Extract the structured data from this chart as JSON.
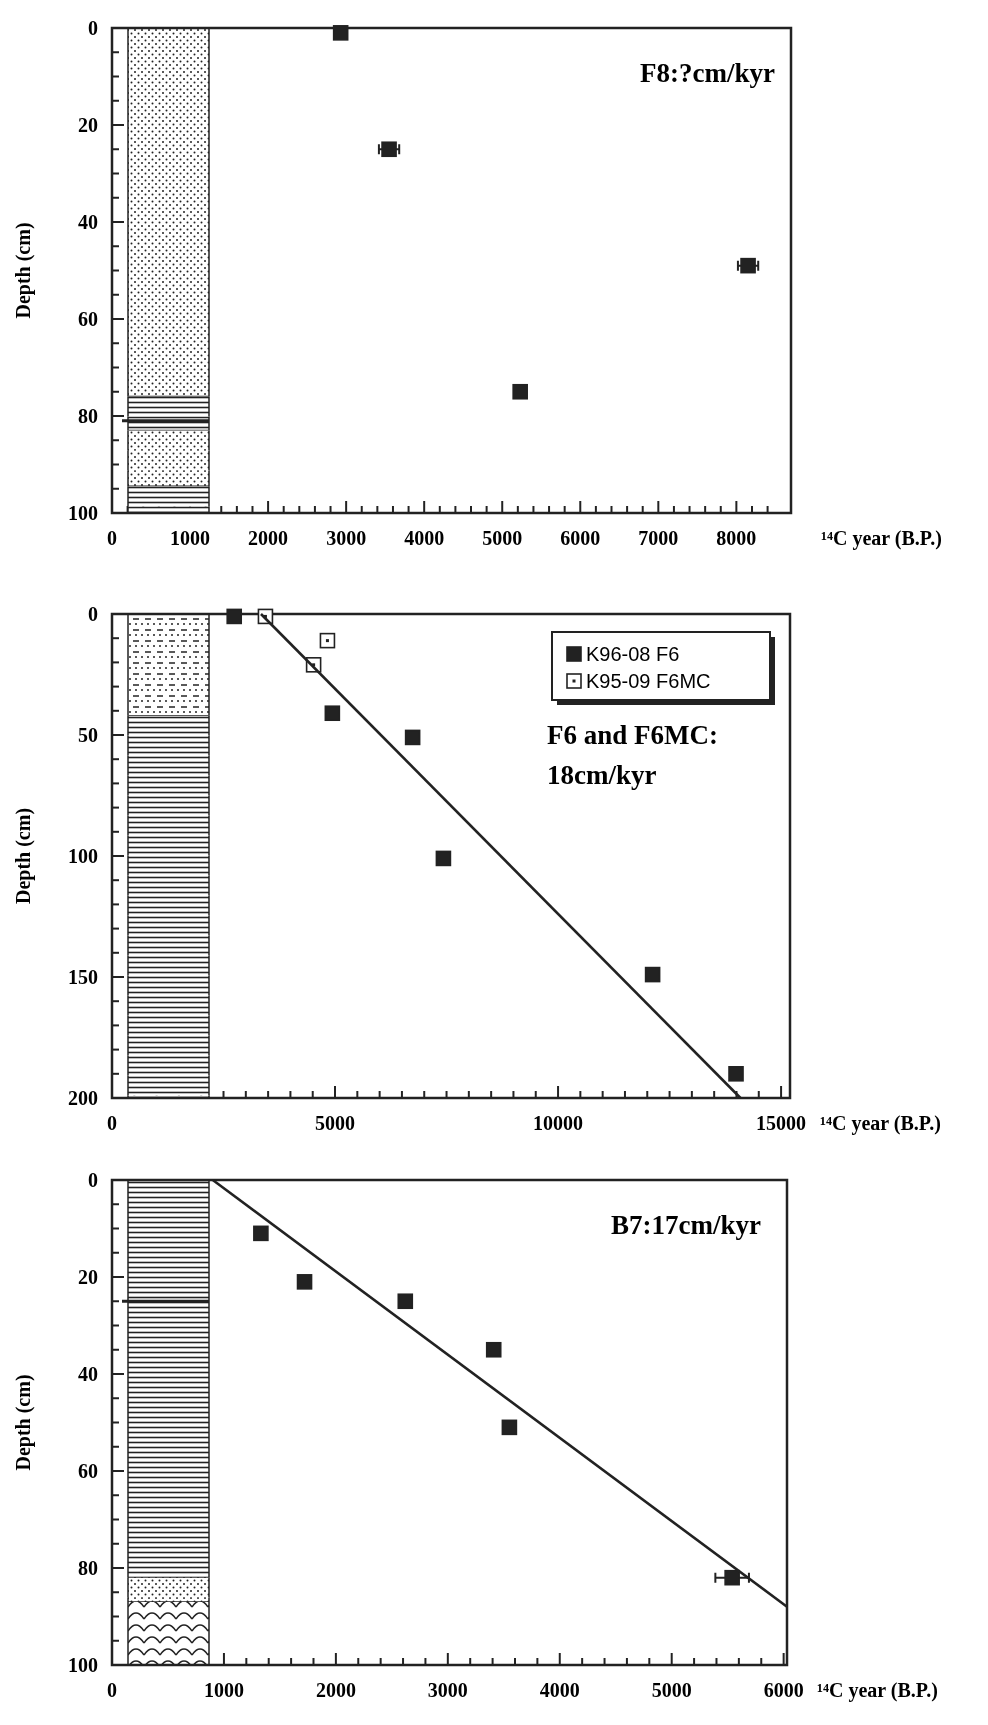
{
  "chart_data": [
    {
      "type": "scatter",
      "title": "F8:?cm/kyr",
      "xlabel": "¹⁴C year (B.P.)",
      "ylabel": "Depth (cm)",
      "marker": "square",
      "legend": false,
      "xlim": [
        0,
        8700
      ],
      "ylim": [
        100,
        0
      ],
      "xticks": [
        0,
        1000,
        2000,
        3000,
        4000,
        5000,
        6000,
        7000,
        8000,
        {
          "value": 200,
          "label": null
        },
        {
          "value": 400,
          "label": null
        },
        {
          "value": 600,
          "label": null
        },
        {
          "value": 800,
          "label": null
        },
        {
          "value": 1200,
          "label": null
        },
        {
          "value": 1400,
          "label": null
        },
        {
          "value": 1600,
          "label": null
        },
        {
          "value": 1800,
          "label": null
        },
        {
          "value": 2200,
          "label": null
        },
        {
          "value": 2400,
          "label": null
        },
        {
          "value": 2600,
          "label": null
        },
        {
          "value": 2800,
          "label": null
        },
        {
          "value": 3200,
          "label": null
        },
        {
          "value": 3400,
          "label": null
        },
        {
          "value": 3600,
          "label": null
        },
        {
          "value": 3800,
          "label": null
        },
        {
          "value": 4200,
          "label": null
        },
        {
          "value": 4400,
          "label": null
        },
        {
          "value": 4600,
          "label": null
        },
        {
          "value": 4800,
          "label": null
        },
        {
          "value": 5200,
          "label": null
        },
        {
          "value": 5400,
          "label": null
        },
        {
          "value": 5600,
          "label": null
        },
        {
          "value": 5800,
          "label": null
        },
        {
          "value": 6200,
          "label": null
        },
        {
          "value": 6400,
          "label": null
        },
        {
          "value": 6600,
          "label": null
        },
        {
          "value": 6800,
          "label": null
        },
        {
          "value": 7200,
          "label": null
        },
        {
          "value": 7400,
          "label": null
        },
        {
          "value": 7600,
          "label": null
        },
        {
          "value": 7800,
          "label": null
        },
        {
          "value": 8200,
          "label": null
        },
        {
          "value": 8400,
          "label": null
        }
      ],
      "yticks": [
        0,
        20,
        40,
        60,
        80,
        100,
        {
          "value": 5,
          "label": null
        },
        {
          "value": 10,
          "label": null
        },
        {
          "value": 15,
          "label": null
        },
        {
          "value": 25,
          "label": null
        },
        {
          "value": 30,
          "label": null
        },
        {
          "value": 35,
          "label": null
        },
        {
          "value": 45,
          "label": null
        },
        {
          "value": 50,
          "label": null
        },
        {
          "value": 55,
          "label": null
        },
        {
          "value": 65,
          "label": null
        },
        {
          "value": 70,
          "label": null
        },
        {
          "value": 75,
          "label": null
        },
        {
          "value": 85,
          "label": null
        },
        {
          "value": 90,
          "label": null
        },
        {
          "value": 95,
          "label": null
        }
      ],
      "series": [
        {
          "color": "#222222",
          "x": [
            2930,
            3550,
            5230,
            8150
          ],
          "values": [
            1,
            25,
            75,
            49
          ],
          "xerrors": [
            null,
            130,
            null,
            130
          ]
        }
      ]
    },
    {
      "type": "scatter",
      "title": "F6 and F6MC:\n18cm/kyr",
      "xlabel": "¹⁴C year (B.P.)",
      "ylabel": "Depth (cm)",
      "marker": "square",
      "legend": "top right",
      "xlim": [
        0,
        15200
      ],
      "ylim": [
        200,
        0
      ],
      "xticks": [
        0,
        5000,
        10000,
        15000,
        {
          "value": 500,
          "label": null
        },
        {
          "value": 1000,
          "label": null
        },
        {
          "value": 1500,
          "label": null
        },
        {
          "value": 2000,
          "label": null
        },
        {
          "value": 2500,
          "label": null
        },
        {
          "value": 3000,
          "label": null
        },
        {
          "value": 3500,
          "label": null
        },
        {
          "value": 4000,
          "label": null
        },
        {
          "value": 4500,
          "label": null
        },
        {
          "value": 5500,
          "label": null
        },
        {
          "value": 6000,
          "label": null
        },
        {
          "value": 6500,
          "label": null
        },
        {
          "value": 7000,
          "label": null
        },
        {
          "value": 7500,
          "label": null
        },
        {
          "value": 8000,
          "label": null
        },
        {
          "value": 8500,
          "label": null
        },
        {
          "value": 9000,
          "label": null
        },
        {
          "value": 9500,
          "label": null
        },
        {
          "value": 10500,
          "label": null
        },
        {
          "value": 11000,
          "label": null
        },
        {
          "value": 11500,
          "label": null
        },
        {
          "value": 12000,
          "label": null
        },
        {
          "value": 12500,
          "label": null
        },
        {
          "value": 13000,
          "label": null
        },
        {
          "value": 13500,
          "label": null
        },
        {
          "value": 14000,
          "label": null
        },
        {
          "value": 14500,
          "label": null
        }
      ],
      "yticks": [
        0,
        50,
        100,
        150,
        200,
        {
          "value": 10,
          "label": null
        },
        {
          "value": 20,
          "label": null
        },
        {
          "value": 30,
          "label": null
        },
        {
          "value": 40,
          "label": null
        },
        {
          "value": 60,
          "label": null
        },
        {
          "value": 70,
          "label": null
        },
        {
          "value": 80,
          "label": null
        },
        {
          "value": 90,
          "label": null
        },
        {
          "value": 110,
          "label": null
        },
        {
          "value": 120,
          "label": null
        },
        {
          "value": 130,
          "label": null
        },
        {
          "value": 140,
          "label": null
        },
        {
          "value": 160,
          "label": null
        },
        {
          "value": 170,
          "label": null
        },
        {
          "value": 180,
          "label": null
        },
        {
          "value": 190,
          "label": null
        }
      ],
      "series": [
        {
          "name": "K96-08 F6",
          "color": "#222222",
          "x": [
            2740,
            4940,
            6740,
            7430,
            12120,
            13990
          ],
          "values": [
            1,
            41,
            51,
            101,
            149,
            190
          ]
        },
        {
          "name": "K95-09 F6MC",
          "color": "#ffffff",
          "x": [
            3440,
            4830,
            4520
          ],
          "values": [
            1,
            11,
            21
          ]
        },
        {
          "type": "line",
          "marker": "none",
          "color": "#222222",
          "x": [
            3340,
            14090
          ],
          "values": [
            0,
            200
          ]
        }
      ]
    },
    {
      "type": "scatter",
      "title": "B7:17cm/kyr",
      "xlabel": "¹⁴C year (B.P.)",
      "ylabel": "Depth (cm)",
      "marker": "square",
      "legend": false,
      "xlim": [
        0,
        6030
      ],
      "ylim": [
        100,
        0
      ],
      "xticks": [
        0,
        1000,
        2000,
        3000,
        4000,
        5000,
        6000,
        {
          "value": 200,
          "label": null
        },
        {
          "value": 400,
          "label": null
        },
        {
          "value": 600,
          "label": null
        },
        {
          "value": 800,
          "label": null
        },
        {
          "value": 1200,
          "label": null
        },
        {
          "value": 1400,
          "label": null
        },
        {
          "value": 1600,
          "label": null
        },
        {
          "value": 1800,
          "label": null
        },
        {
          "value": 2200,
          "label": null
        },
        {
          "value": 2400,
          "label": null
        },
        {
          "value": 2600,
          "label": null
        },
        {
          "value": 2800,
          "label": null
        },
        {
          "value": 3200,
          "label": null
        },
        {
          "value": 3400,
          "label": null
        },
        {
          "value": 3600,
          "label": null
        },
        {
          "value": 3800,
          "label": null
        },
        {
          "value": 4200,
          "label": null
        },
        {
          "value": 4400,
          "label": null
        },
        {
          "value": 4600,
          "label": null
        },
        {
          "value": 4800,
          "label": null
        },
        {
          "value": 5200,
          "label": null
        },
        {
          "value": 5400,
          "label": null
        },
        {
          "value": 5600,
          "label": null
        },
        {
          "value": 5800,
          "label": null
        }
      ],
      "yticks": [
        0,
        20,
        40,
        60,
        80,
        100,
        {
          "value": 5,
          "label": null
        },
        {
          "value": 10,
          "label": null
        },
        {
          "value": 15,
          "label": null
        },
        {
          "value": 25,
          "label": null
        },
        {
          "value": 30,
          "label": null
        },
        {
          "value": 35,
          "label": null
        },
        {
          "value": 45,
          "label": null
        },
        {
          "value": 50,
          "label": null
        },
        {
          "value": 55,
          "label": null
        },
        {
          "value": 65,
          "label": null
        },
        {
          "value": 70,
          "label": null
        },
        {
          "value": 75,
          "label": null
        },
        {
          "value": 85,
          "label": null
        },
        {
          "value": 90,
          "label": null
        },
        {
          "value": 95,
          "label": null
        }
      ],
      "series": [
        {
          "color": "#222222",
          "x": [
            1330,
            1720,
            2620,
            3410,
            3550,
            5540
          ],
          "values": [
            11,
            21,
            25,
            35,
            51,
            82
          ],
          "xerrors": [
            null,
            null,
            null,
            null,
            null,
            150
          ]
        },
        {
          "type": "line",
          "marker": "none",
          "color": "#222222",
          "x": [
            900,
            6030
          ],
          "values": [
            0,
            88
          ]
        }
      ]
    }
  ]
}
